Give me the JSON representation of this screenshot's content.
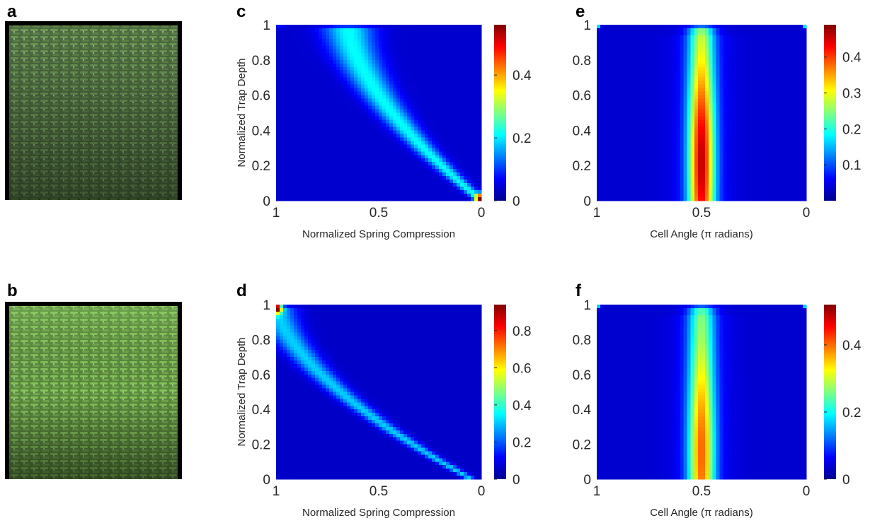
{
  "panels": {
    "a": {
      "letter": "a"
    },
    "b": {
      "letter": "b"
    }
  },
  "colormap": "jet",
  "chart_data": [
    {
      "type": "heatmap",
      "letter": "c",
      "xlabel": "Normalized Spring Compression",
      "ylabel": "Normalized Trap Depth",
      "xlim": [
        1,
        0
      ],
      "ylim": [
        0,
        1
      ],
      "x_ticks": [
        "1",
        "0.5",
        "0"
      ],
      "y_ticks": [
        "0",
        "0.2",
        "0.4",
        "0.6",
        "0.8",
        "1"
      ],
      "colorbar": {
        "ticks": [
          "0",
          "0.2",
          "0.4"
        ],
        "max": 0.56
      },
      "ridge": {
        "shape": "curve",
        "x_at_top": 0.65,
        "x_at_bottom": 0.0,
        "width_top": 0.12,
        "width_bottom": 0.03,
        "peak": 0.18,
        "hotspot": {
          "x": 0.0,
          "y": 0.01,
          "value": 0.5
        }
      }
    },
    {
      "type": "heatmap",
      "letter": "d",
      "xlabel": "Normalized Spring Compression",
      "ylabel": "Normalized Trap Depth",
      "xlim": [
        1,
        0
      ],
      "ylim": [
        0,
        1
      ],
      "x_ticks": [
        "1",
        "0.5",
        "0"
      ],
      "y_ticks": [
        "0",
        "0.2",
        "0.4",
        "0.6",
        "0.8",
        "1"
      ],
      "colorbar": {
        "ticks": [
          "0",
          "0.2",
          "0.4",
          "0.6",
          "0.8"
        ],
        "max": 0.94
      },
      "ridge": {
        "shape": "curve",
        "x_at_top": 1.0,
        "x_at_bottom": 0.05,
        "width_top": 0.09,
        "width_bottom": 0.025,
        "peak": 0.26,
        "hotspot": {
          "x": 1.0,
          "y": 0.98,
          "value": 0.9
        }
      }
    },
    {
      "type": "heatmap",
      "letter": "e",
      "xlabel": "Cell Angle (π radians)",
      "ylabel": "",
      "xlim": [
        1,
        0
      ],
      "ylim": [
        0,
        1
      ],
      "x_ticks": [
        "1",
        "0.5",
        "0"
      ],
      "y_ticks": [
        "0",
        "0.2",
        "0.4",
        "0.6",
        "0.8",
        "1"
      ],
      "colorbar": {
        "ticks": [
          "0.1",
          "0.2",
          "0.3",
          "0.4"
        ],
        "min": 0.0,
        "max": 0.49
      },
      "ridge": {
        "shape": "vertical",
        "x_center": 0.5,
        "width": 0.06,
        "peak": 0.42,
        "peak_y": 0.22
      }
    },
    {
      "type": "heatmap",
      "letter": "f",
      "xlabel": "Cell Angle (π radians)",
      "ylabel": "",
      "xlim": [
        1,
        0
      ],
      "ylim": [
        0,
        1
      ],
      "x_ticks": [
        "1",
        "0.5",
        "0"
      ],
      "y_ticks": [
        "0",
        "0.2",
        "0.4",
        "0.6",
        "0.8",
        "1"
      ],
      "colorbar": {
        "ticks": [
          "0",
          "0.2",
          "0.4"
        ],
        "max": 0.52
      },
      "ridge": {
        "shape": "vertical",
        "x_center": 0.5,
        "width": 0.06,
        "peak": 0.36,
        "peak_y": 0.15
      }
    }
  ]
}
